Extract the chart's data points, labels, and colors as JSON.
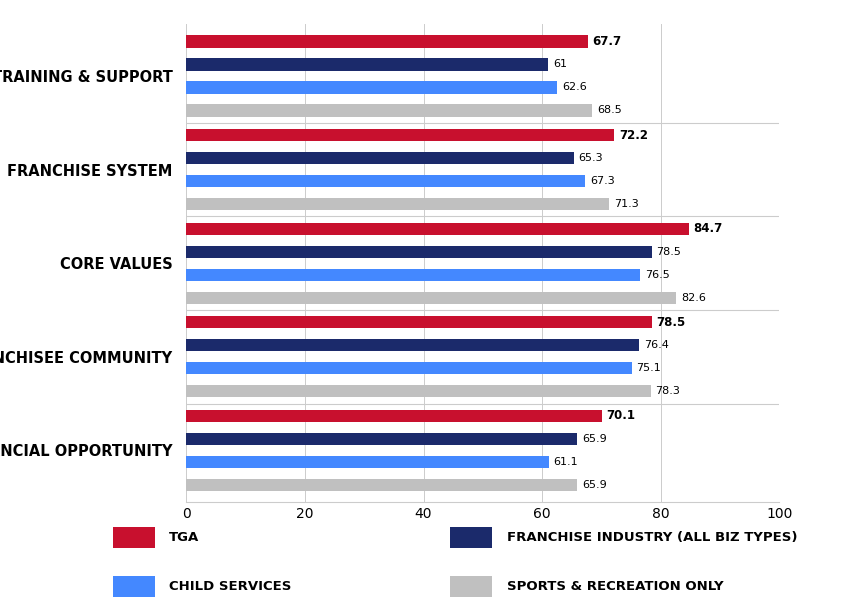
{
  "categories": [
    "TRAINING & SUPPORT",
    "FRANCHISE SYSTEM",
    "CORE VALUES",
    "FRANCHISEE COMMUNITY",
    "FINANCIAL OPPORTUNITY"
  ],
  "series": {
    "TGA": [
      67.7,
      72.2,
      84.7,
      78.5,
      70.1
    ],
    "FRANCHISE INDUSTRY (ALL BIZ TYPES)": [
      61.0,
      65.3,
      78.5,
      76.4,
      65.9
    ],
    "CHILD SERVICES": [
      62.6,
      67.3,
      76.5,
      75.1,
      61.1
    ],
    "SPORTS & RECREATION ONLY": [
      68.5,
      71.3,
      82.6,
      78.3,
      65.9
    ]
  },
  "colors": {
    "TGA": "#C8102E",
    "FRANCHISE INDUSTRY (ALL BIZ TYPES)": "#1B2A6B",
    "CHILD SERVICES": "#4488FF",
    "SPORTS & RECREATION ONLY": "#C0C0C0"
  },
  "series_order": [
    "TGA",
    "FRANCHISE INDUSTRY (ALL BIZ TYPES)",
    "CHILD SERVICES",
    "SPORTS & RECREATION ONLY"
  ],
  "xlim": [
    0,
    100
  ],
  "xticks": [
    0,
    20,
    40,
    60,
    80,
    100
  ],
  "bar_height": 0.13,
  "background_color": "#FFFFFF",
  "legend_background": "#DCDCDC",
  "value_fontsize": 8.5,
  "label_fontsize": 10.5,
  "tick_fontsize": 10,
  "legend_fontsize": 9.5
}
